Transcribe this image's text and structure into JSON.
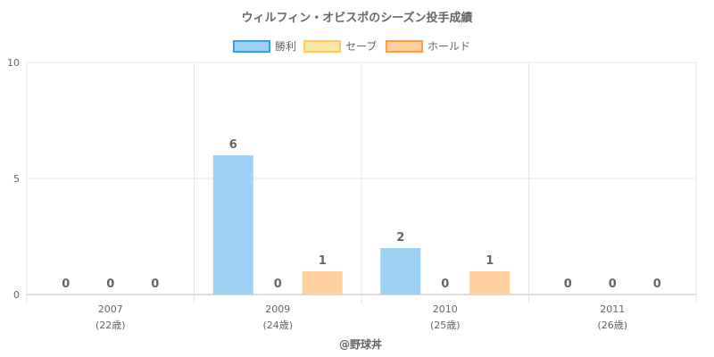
{
  "chart_data": {
    "type": "bar",
    "title": "ウィルフィン・オビスポのシーズン投手成績",
    "categories": [
      "2007",
      "2009",
      "2010",
      "2011"
    ],
    "category_sublabels": [
      "(22歳)",
      "(24歳)",
      "(25歳)",
      "(26歳)"
    ],
    "series": [
      {
        "name": "勝利",
        "values": [
          0,
          6,
          2,
          0
        ],
        "color": "#9cd0f5",
        "border": "#36a2eb"
      },
      {
        "name": "セーブ",
        "values": [
          0,
          0,
          0,
          0
        ],
        "color": "#ffe6a5",
        "border": "#ffcd56"
      },
      {
        "name": "ホールド",
        "values": [
          0,
          1,
          1,
          0
        ],
        "color": "#ffcf9f",
        "border": "#ff9f40"
      }
    ],
    "ylim": [
      0,
      10
    ],
    "yticks": [
      0,
      5,
      10
    ],
    "legend_position": "top",
    "grid": true,
    "credit": "@野球丼"
  }
}
